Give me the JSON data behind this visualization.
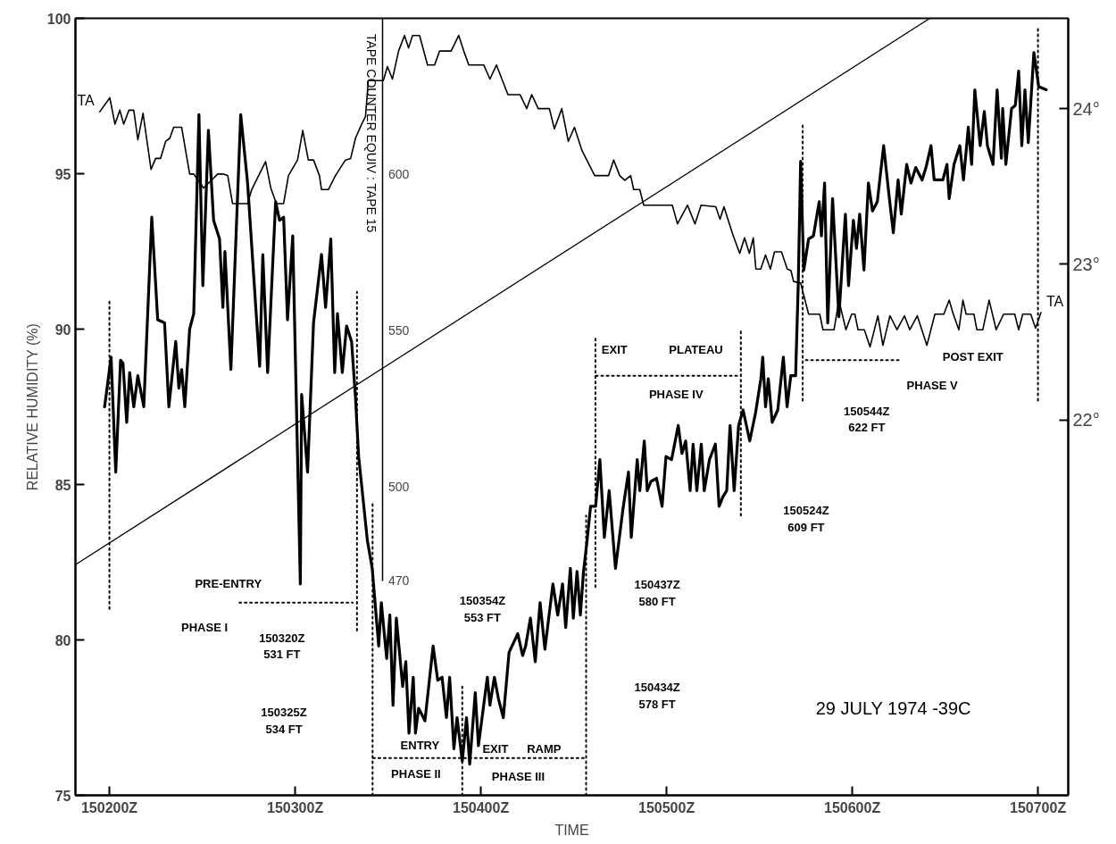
{
  "chart_data": {
    "type": "line",
    "xlabel": "TIME",
    "ylabel": "RELATIVE HUMIDITY (%)",
    "y3label": "TAPE COUNTER EQUIV : TAPE 15",
    "xlim": [
      150181.7,
      150716.3
    ],
    "xticks": [
      {
        "value": 150200,
        "label": "150200Z"
      },
      {
        "value": 150300,
        "label": "150300Z"
      },
      {
        "value": 150400,
        "label": "150400Z"
      },
      {
        "value": 150500,
        "label": "150500Z"
      },
      {
        "value": 150600,
        "label": "150600Z"
      },
      {
        "value": 150700,
        "label": "150700Z"
      }
    ],
    "ylim": [
      75,
      100
    ],
    "yticks": [
      75,
      80,
      85,
      90,
      95,
      100
    ],
    "y2lim": [
      19.59,
      24.58
    ],
    "y2ticks": [
      {
        "value": 22,
        "label": "22°"
      },
      {
        "value": 23,
        "label": "23°"
      },
      {
        "value": 24,
        "label": "24°"
      }
    ],
    "y3lim": [
      401.3,
      649.9
    ],
    "y3ticks": [
      470,
      500,
      550,
      600
    ],
    "series": [
      {
        "color": "#000000",
        "axis": "y",
        "x": [
          150197.4,
          150200.9,
          150203.4,
          150206,
          150207.3,
          150209.3,
          150210.9,
          150213.1,
          150215.3,
          150218.5,
          150222.8,
          150226,
          150229.7,
          150232,
          150235.7,
          150237.4,
          150238.9,
          150240.6,
          150243.2,
          150245.4,
          150248.2,
          150250.3,
          150253.3,
          150256.1,
          150259.3,
          150261.1,
          150262.2,
          150265.4,
          150270.7,
          150274.4,
          150280.9,
          150282.6,
          150285.2,
          150289.5,
          150291.6,
          150293.8,
          150295.9,
          150298.7,
          150302.8,
          150303.5,
          150306.7,
          150309.9,
          150314.2,
          150316.4,
          150319.2,
          150321.3,
          150322.8,
          150325.4,
          150327.7,
          150330.4,
          150332.5,
          150334.2,
          150338.9,
          150341.5,
          150345,
          150346.4,
          150349.3,
          150351,
          150352.7,
          150354.5,
          150357.9,
          150359.6,
          150361.3,
          150363.6,
          150364.8,
          150366.5,
          150369.9,
          150374.3,
          150376.8,
          150379.1,
          150381.5,
          150383.2,
          150385.5,
          150387.2,
          150390,
          150392.3,
          150394,
          150397,
          150398.7,
          150403.5,
          150404.9,
          150407.3,
          150409.5,
          150412.1,
          150415.2,
          150419.9,
          150422.5,
          150424.1,
          150426.7,
          150429.3,
          150431.9,
          150434.5,
          150438.8,
          150441.4,
          150444,
          150445.7,
          150448.2,
          150449.8,
          150451.8,
          150453.6,
          150455.3,
          150457.2,
          150459.1,
          150461.8,
          150464.1,
          150466.5,
          150469.1,
          150472.5,
          150476.5,
          150479.5,
          150481,
          150484.2,
          150485.6,
          150488,
          150489.6,
          150491.6,
          150494.6,
          150497.6,
          150499.7,
          150502.7,
          150506.3,
          150508.3,
          150510.3,
          150512.7,
          150514.3,
          150516.3,
          150518.7,
          150520.3,
          150523.1,
          150526.3,
          150528.3,
          150530.3,
          150532.4,
          150534.2,
          150536.4,
          150538.8,
          150541.2,
          150544.8,
          150547.9,
          150550.8,
          150551.8,
          150553.3,
          150554.8,
          150556.9,
          150559.9,
          150562.9,
          150564.9,
          150566.9,
          150569.5,
          150570.9,
          150572.2,
          150573.9,
          150576.5,
          150579.1,
          150582.2,
          150583.4,
          150585.1,
          150586.8,
          150589.4,
          150592.8,
          150596.3,
          150598,
          150600.6,
          150602.3,
          150604,
          150606.3,
          150608.7,
          150610.9,
          150613.5,
          150616.9,
          150620,
          150622.1,
          150624.7,
          150626.4,
          150629.3,
          150631.6,
          150634.2,
          150637.6,
          150639.7,
          150642.4,
          150644.1,
          150648.8,
          150651,
          150652.2,
          150654.8,
          150657.9,
          150659.9,
          150662.5,
          150664.3,
          150666,
          150668.9,
          150671.1,
          150672.8,
          150675.8,
          150678,
          150680.3,
          150681,
          150682.7,
          150685.8,
          150687.8,
          150689.6,
          150691.3,
          150693,
          150694.8,
          150697.8,
          150700.4,
          150704.4
        ],
        "values": [
          87.5,
          89.1,
          85.4,
          89.0,
          88.9,
          87.0,
          88.6,
          87.5,
          88.5,
          87.5,
          93.6,
          90.3,
          90.2,
          87.5,
          89.6,
          88.1,
          88.7,
          87.5,
          90.0,
          90.5,
          96.9,
          91.4,
          96.4,
          93.5,
          92.9,
          90.7,
          92.5,
          88.7,
          96.9,
          94.7,
          88.8,
          92.4,
          88.6,
          94.1,
          93.5,
          93.6,
          90.3,
          93.0,
          81.8,
          87.9,
          85.4,
          90.2,
          92.4,
          90.7,
          92.9,
          88.6,
          90.5,
          88.6,
          90.1,
          89.6,
          87.8,
          85.9,
          83.2,
          82.3,
          79.8,
          81.2,
          79.4,
          80.8,
          77.9,
          80.7,
          78.5,
          79.3,
          77.0,
          78.8,
          77.0,
          77.8,
          77.4,
          79.8,
          78.7,
          78.8,
          77.5,
          78.8,
          76.5,
          77.5,
          76.1,
          77.5,
          76.0,
          78.3,
          76.6,
          78.8,
          77.9,
          78.8,
          78.1,
          77.5,
          79.6,
          80.2,
          79.5,
          79.8,
          80.7,
          79.3,
          81.2,
          79.7,
          81.8,
          80.8,
          81.8,
          80.4,
          82.3,
          80.7,
          82.2,
          80.8,
          82.2,
          83.2,
          84.3,
          84.3,
          85.8,
          83.3,
          84.8,
          82.3,
          84.2,
          85.4,
          83.3,
          85.8,
          84.8,
          86.4,
          84.8,
          85.1,
          85.2,
          84.3,
          85.9,
          85.8,
          86.9,
          86.0,
          86.4,
          84.8,
          86.3,
          84.8,
          86.3,
          84.8,
          85.8,
          86.3,
          84.3,
          84.6,
          84.8,
          86.9,
          84.8,
          86.9,
          87.4,
          86.4,
          87.3,
          88.4,
          89.1,
          87.5,
          88.4,
          87.0,
          87.4,
          89.1,
          87.5,
          88.5,
          88.5,
          91.4,
          95.4,
          91.9,
          92.9,
          93.0,
          94.1,
          93.0,
          94.7,
          90.2,
          94.2,
          90.4,
          93.7,
          91.4,
          93.5,
          92.6,
          93.7,
          91.9,
          94.7,
          93.8,
          94.1,
          95.9,
          94.2,
          93.1,
          94.8,
          93.7,
          95.3,
          94.7,
          95.2,
          94.8,
          95.2,
          95.9,
          94.8,
          94.8,
          95.3,
          94.2,
          95.3,
          95.9,
          94.8,
          96.5,
          95.3,
          97.7,
          95.9,
          97.0,
          95.9,
          95.3,
          97.7,
          95.5,
          97.1,
          95.3,
          97.1,
          97.2,
          98.3,
          95.9,
          97.7,
          96.0,
          98.9,
          97.8,
          97.7
        ]
      },
      {
        "name": "TA",
        "color": "#000000",
        "axis": "y2",
        "x": [
          150194.8,
          150200.2,
          150203,
          150205.6,
          150207.7,
          150210.5,
          150213.1,
          150215.3,
          150218.1,
          150222.4,
          150224.9,
          150227.5,
          150230.3,
          150232.5,
          150234.6,
          150238.9,
          150243.2,
          150245.4,
          150250.7,
          150258.3,
          150261.1,
          150263.7,
          150266.3,
          150274.4,
          150276.6,
          150284.1,
          150286.9,
          150289.9,
          150293.8,
          150296.4,
          150301.3,
          150304.1,
          150307.1,
          150309.9,
          150313.1,
          150314.2,
          150317.9,
          150321.7,
          150327.1,
          150329.9,
          150332.5,
          150335.8,
          150337.9,
          150339.4,
          150347.5,
          150349.7,
          150352.4,
          150355.7,
          150358.9,
          150361.1,
          150363.2,
          150367,
          150371.3,
          150375.1,
          150377.8,
          150384,
          150388.1,
          150390.8,
          150393.5,
          150401.6,
          150404.9,
          150408.4,
          150414.6,
          150421.1,
          150424.7,
          150427.4,
          150430.9,
          150436.9,
          150439.6,
          150443.6,
          150447.1,
          150450.4,
          150454.5,
          150461.3,
          150468.8,
          150471.5,
          150474.8,
          150477.5,
          150480.7,
          150482.3,
          150485.6,
          150487.7,
          150503.1,
          150505.9,
          150511.3,
          150515.3,
          150518.6,
          150526.5,
          150528.8,
          150530.9,
          150535.7,
          150539.4,
          150542,
          150544.6,
          150546.7,
          150548.1,
          150550.7,
          150553.3,
          150555.9,
          150558.1,
          150561.9,
          150565,
          150567,
          150568.4,
          150572.2,
          150576.5,
          150582.5,
          150584.2,
          150590.2,
          150592.8,
          150596.6,
          150599.7,
          150601.4,
          150603.1,
          150606.5,
          150609.6,
          150613.8,
          150616.5,
          150620.3,
          150624.1,
          150628.1,
          150631,
          150635,
          150640.2,
          150644.5,
          150649.3,
          150652.2,
          150654.4,
          150657.4,
          150659.6,
          150661.3,
          150665.5,
          150667.1,
          150670.3,
          150673.7,
          150677.5,
          150681.5,
          150687.5,
          150689.6,
          150691.8,
          150696.1,
          150698.7,
          150701.6
        ],
        "values": [
          23.98,
          24.07,
          23.9,
          23.99,
          23.9,
          23.99,
          23.99,
          23.8,
          23.97,
          23.61,
          23.68,
          23.68,
          23.79,
          23.81,
          23.88,
          23.88,
          23.58,
          23.58,
          23.49,
          23.58,
          23.58,
          23.57,
          23.39,
          23.39,
          23.48,
          23.66,
          23.49,
          23.39,
          23.39,
          23.57,
          23.67,
          23.86,
          23.67,
          23.67,
          23.57,
          23.48,
          23.48,
          23.57,
          23.67,
          23.68,
          23.81,
          23.9,
          23.95,
          24.18,
          24.18,
          24.27,
          24.19,
          24.37,
          24.47,
          24.39,
          24.47,
          24.47,
          24.28,
          24.28,
          24.37,
          24.37,
          24.47,
          24.37,
          24.28,
          24.28,
          24.19,
          24.28,
          24.09,
          24.09,
          24.0,
          24.09,
          24.0,
          24.0,
          23.87,
          24.0,
          23.79,
          23.88,
          23.73,
          23.57,
          23.57,
          23.67,
          23.57,
          23.54,
          23.57,
          23.48,
          23.48,
          23.38,
          23.38,
          23.26,
          23.38,
          23.26,
          23.38,
          23.37,
          23.29,
          23.37,
          23.19,
          23.07,
          23.17,
          23.07,
          23.17,
          22.97,
          22.97,
          23.06,
          22.97,
          23.08,
          23.08,
          22.97,
          22.96,
          22.89,
          22.88,
          22.68,
          22.68,
          22.58,
          22.58,
          22.77,
          22.58,
          22.68,
          22.68,
          22.58,
          22.58,
          22.47,
          22.67,
          22.48,
          22.67,
          22.58,
          22.67,
          22.58,
          22.67,
          22.48,
          22.68,
          22.68,
          22.77,
          22.68,
          22.58,
          22.77,
          22.68,
          22.68,
          22.58,
          22.58,
          22.77,
          22.58,
          22.68,
          22.68,
          22.58,
          22.68,
          22.68,
          22.59,
          22.69
        ]
      },
      {
        "color": "#000000",
        "axis": "y3",
        "x": [
          150181.7,
          150641.8
        ],
        "values": [
          475.1,
          649.9
        ]
      },
      {
        "color": "#000000",
        "line_style": "dotted",
        "x": [
          150200,
          150200
        ],
        "values": [
          81.0,
          90.9
        ]
      },
      {
        "color": "#000000",
        "line_style": "dotted",
        "x": [
          150333.3,
          150333.3
        ],
        "values": [
          80.3,
          91.2
        ]
      },
      {
        "color": "#000000",
        "line_style": "dotted",
        "x": [
          150341.7,
          150341.7
        ],
        "values": [
          75,
          84.4
        ]
      },
      {
        "color": "#000000",
        "line_style": "dotted",
        "x": [
          150390,
          150390
        ],
        "values": [
          75,
          78.5
        ]
      },
      {
        "color": "#000000",
        "line_style": "dotted",
        "x": [
          150456.7,
          150456.7
        ],
        "values": [
          75,
          84.0
        ]
      },
      {
        "color": "#000000",
        "line_style": "dotted",
        "x": [
          150461.7,
          150461.7
        ],
        "values": [
          81.7,
          89.8
        ]
      },
      {
        "color": "#000000",
        "line_style": "dotted",
        "x": [
          150540,
          150540
        ],
        "values": [
          84.0,
          90.0
        ]
      },
      {
        "color": "#000000",
        "line_style": "dotted",
        "x": [
          150573.3,
          150573.3
        ],
        "values": [
          87.7,
          96.6
        ]
      },
      {
        "color": "#000000",
        "line_style": "dotted",
        "x": [
          150700,
          150700
        ],
        "values": [
          87.7,
          99.7
        ]
      },
      {
        "color": "#000000",
        "line_style": "dotted",
        "x": [
          150270,
          150331
        ],
        "values": [
          81.2,
          81.2
        ]
      },
      {
        "color": "#000000",
        "line_style": "dotted",
        "x": [
          150342,
          150389
        ],
        "values": [
          76.2,
          76.2
        ]
      },
      {
        "color": "#000000",
        "line_style": "dotted",
        "x": [
          150391,
          150456
        ],
        "values": [
          76.2,
          76.2
        ]
      },
      {
        "color": "#000000",
        "line_style": "dotted",
        "x": [
          150462,
          150539
        ],
        "values": [
          88.5,
          88.5
        ]
      },
      {
        "color": "#000000",
        "line_style": "dotted",
        "x": [
          150575,
          150625
        ],
        "values": [
          89.0,
          89.0
        ]
      }
    ],
    "annotations": [
      "PRE-ENTRY",
      "PHASE I",
      "150320Z\n531 FT",
      "150325Z\n534 FT",
      "ENTRY",
      "PHASE II",
      "EXIT",
      "RAMP",
      "PHASE III",
      "150354Z\n553 FT",
      "150434Z\n578 FT",
      "150437Z\n580 FT",
      "EXIT",
      "PLATEAU",
      "PHASE IV",
      "150524Z\n609 FT",
      "150544Z\n622 FT",
      "POST EXIT",
      "PHASE V",
      "29 JULY 1974 -39C"
    ]
  }
}
